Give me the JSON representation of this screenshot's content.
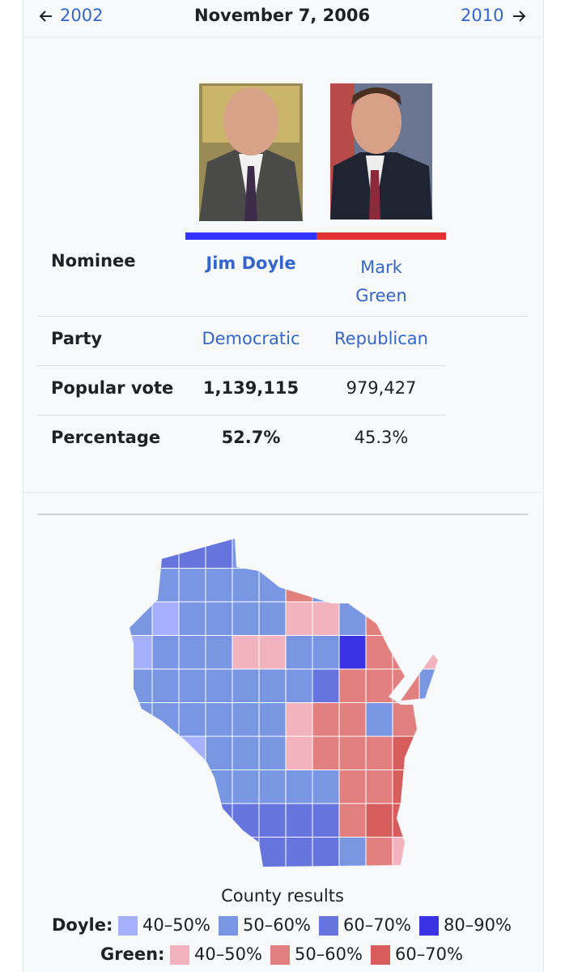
{
  "nav": {
    "previous": "2002",
    "date": "November 7, 2006",
    "next": "2010"
  },
  "table": {
    "rows": [
      [
        "Nominee",
        "Jim Doyle",
        "Mark Green"
      ],
      [
        "Party",
        "Democratic",
        "Republican"
      ],
      [
        "Popular vote",
        "1,139,115",
        "979,427"
      ],
      [
        "Percentage",
        "52.7%",
        "45.3%"
      ]
    ]
  },
  "map": {
    "caption": "County results",
    "legend": [
      {
        "label": "Doyle:",
        "items": [
          {
            "text": "40–50%",
            "color": "#a5b0ff"
          },
          {
            "text": "50–60%",
            "color": "#7996e2"
          },
          {
            "text": "60–70%",
            "color": "#6674de"
          },
          {
            "text": "80–90%",
            "color": "#3933e5"
          }
        ]
      },
      {
        "label": "Green:",
        "items": [
          {
            "text": "40–50%",
            "color": "#f2b3be"
          },
          {
            "text": "50–60%",
            "color": "#e27f7f"
          },
          {
            "text": "60–70%",
            "color": "#d75d5d"
          }
        ]
      }
    ]
  }
}
